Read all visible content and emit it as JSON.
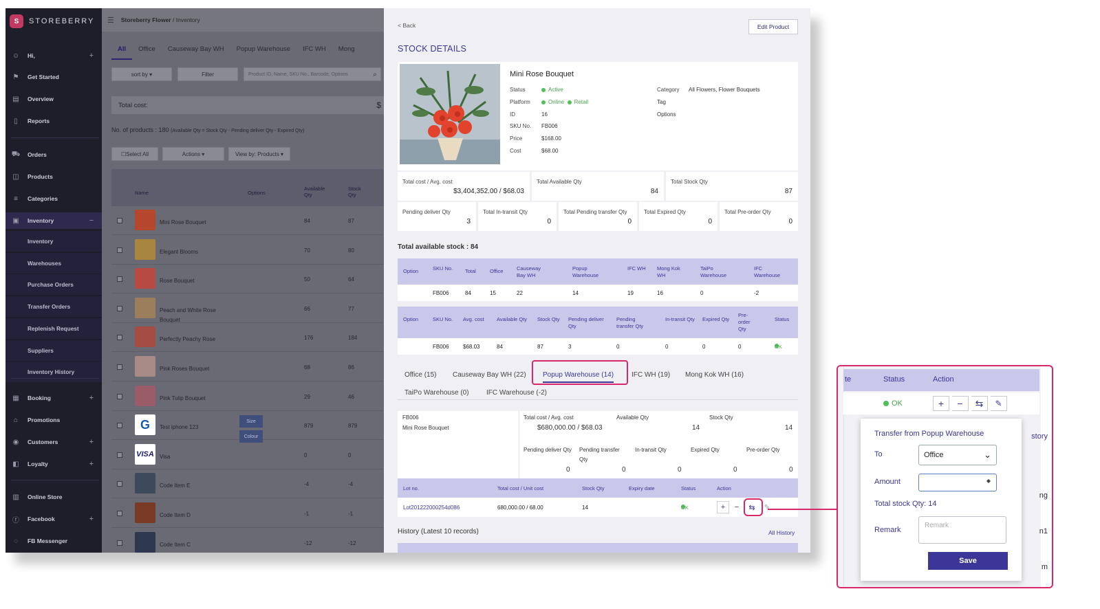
{
  "brand": "STOREBERRY",
  "sidebar": {
    "items": [
      {
        "label": "Hi,",
        "icon": "user-icon",
        "plus": true
      },
      {
        "label": "Get Started",
        "icon": "flag-icon"
      },
      {
        "label": "Overview",
        "icon": "chart-icon"
      },
      {
        "label": "Reports",
        "icon": "document-icon"
      },
      {
        "label": "Orders",
        "icon": "cart-icon"
      },
      {
        "label": "Products",
        "icon": "bag-icon"
      },
      {
        "label": "Categories",
        "icon": "list-icon"
      },
      {
        "label": "Inventory",
        "icon": "boxes-icon",
        "minus": true
      },
      {
        "label": "Booking",
        "icon": "calendar-icon",
        "plus": true
      },
      {
        "label": "Promotions",
        "icon": "home-icon"
      },
      {
        "label": "Customers",
        "icon": "customer-icon",
        "plus": true
      },
      {
        "label": "Loyalty",
        "icon": "loyalty-icon",
        "plus": true
      },
      {
        "label": "Online Store",
        "icon": "store-icon"
      },
      {
        "label": "Facebook",
        "icon": "facebook-icon",
        "plus": true
      },
      {
        "label": "FB Messenger",
        "icon": "messenger-icon"
      }
    ],
    "inventory_sub": [
      "Inventory",
      "Warehouses",
      "Purchase Orders",
      "Transfer Orders",
      "Replenish Request",
      "Suppliers",
      "Inventory History"
    ]
  },
  "list": {
    "breadcrumb": "Storeberry Flower",
    "breadcrumb_sep": "/",
    "breadcrumb_page": "Inventory",
    "tabs": [
      "All",
      "Office",
      "Causeway Bay WH",
      "Popup Warehouse",
      "IFC WH",
      "Mong"
    ],
    "sort_label": "sort by ▾",
    "filter_label": "Filter",
    "search_placeholder": "Product ID, Name, SKU No., Barcode, Options",
    "total_cost_label": "Total cost:",
    "total_cost_value": "$",
    "num_products": "No. of products : 180",
    "num_products_note": "(Available Qty = Stock Qty - Pending deliver Qty - Expired Qty)",
    "select_all": "☐Select All",
    "actions": "Actions ▾",
    "view_by": "View by: Products ▾",
    "columns": {
      "name": "Name",
      "options": "Options",
      "available": "Available Qty",
      "stock": "Stock Qty"
    },
    "rows": [
      {
        "name": "Mini Rose Bouquet",
        "available": "84",
        "stock": "87",
        "color": "#b5472e"
      },
      {
        "name": "Elegant Blooms",
        "available": "70",
        "stock": "80",
        "color": "#a8863f"
      },
      {
        "name": "Rose Bouquet",
        "available": "50",
        "stock": "64",
        "color": "#b84a44"
      },
      {
        "name": "Peach and White Rose Bouquet",
        "available": "66",
        "stock": "77",
        "color": "#9b7e5c"
      },
      {
        "name": "Perfectly Peachy Rose",
        "available": "176",
        "stock": "184",
        "color": "#a54d44"
      },
      {
        "name": "Pink Roses Bouquet",
        "available": "68",
        "stock": "86",
        "color": "#a88a86"
      },
      {
        "name": "Pink Tulip Bouquet",
        "available": "29",
        "stock": "46",
        "color": "#9a5c67"
      },
      {
        "name": "Test iphone 123",
        "available": "879",
        "stock": "879",
        "color": "#d8d8de"
      },
      {
        "name": "Visa",
        "available": "0",
        "stock": "0",
        "color": "#e2e2ea"
      },
      {
        "name": "Code Item E",
        "available": "-4",
        "stock": "-4",
        "color": "#3c4a5c"
      },
      {
        "name": "Code Item D",
        "available": "-1",
        "stock": "-1",
        "color": "#7a3b26"
      },
      {
        "name": "Code Item C",
        "available": "-12",
        "stock": "-12",
        "color": "#2e3850"
      }
    ],
    "option_chips": [
      "Size",
      "Colour"
    ],
    "visa_logo": "VISA"
  },
  "detail": {
    "back": "< Back",
    "edit": "Edit Product",
    "title": "STOCK DETAILS",
    "product": {
      "name": "Mini Rose Bouquet",
      "status_label": "Status",
      "status": "Active",
      "platform_label": "Platform",
      "platform1": "Online",
      "platform2": "Retail",
      "id_label": "ID",
      "id": "16",
      "sku_label": "SKU No.",
      "sku": "FB006",
      "price_label": "Price",
      "price": "$168.00",
      "cost_label": "Cost",
      "cost": "$68.00",
      "category_label": "Category",
      "category": "All Flowers, Flower Bouquets",
      "tag_label": "Tag",
      "options_label": "Options"
    },
    "summary1": [
      {
        "label": "Total cost / Avg. cost",
        "value": "$3,404,352.00 / $68.03"
      },
      {
        "label": "Total Available Qty",
        "value": "84"
      },
      {
        "label": "Total Stock Qty",
        "value": "87"
      }
    ],
    "summary2": [
      {
        "label": "Pending deliver Qty",
        "value": "3"
      },
      {
        "label": "Total In-transit Qty",
        "value": "0"
      },
      {
        "label": "Total Pending transfer Qty",
        "value": "0"
      },
      {
        "label": "Total Expired Qty",
        "value": "0"
      },
      {
        "label": "Total Pre-order Qty",
        "value": "0"
      }
    ],
    "total_available": "Total available stock : 84",
    "t1_head": [
      "Option",
      "SKU No.",
      "Total",
      "Office",
      "Causeway Bay WH",
      "Popup Warehouse",
      "IFC WH",
      "Mong Kok WH",
      "TaiPo Warehouse",
      "IFC Warehouse"
    ],
    "t1_row": [
      "",
      "FB006",
      "84",
      "15",
      "22",
      "14",
      "19",
      "16",
      "0",
      "-2"
    ],
    "t2_head": [
      "Option",
      "SKU No.",
      "Avg. cost",
      "Available Qty",
      "Stock Qty",
      "Pending deliver Qty",
      "Pending transfer Qty",
      "In-transit Qty",
      "Expired Qty",
      "Pre-order Qty",
      "Status"
    ],
    "t2_row": [
      "",
      "FB006",
      "$68.03",
      "84",
      "87",
      "3",
      "0",
      "0",
      "0",
      "0",
      "OK"
    ],
    "wh_tabs": [
      "Office (15)",
      "Causeway Bay WH (22)",
      "Popup Warehouse (14)",
      "IFC WH (19)",
      "Mong Kok WH (16)",
      "TaiPo Warehouse (0)",
      "IFC Warehouse (-2)"
    ],
    "wh": {
      "sku": "FB006",
      "name": "Mini Rose Bouquet",
      "tc_label": "Total cost / Avg. cost",
      "tc": "$680,000.00 / $68.03",
      "av_label": "Available Qty",
      "av": "14",
      "st_label": "Stock Qty",
      "st": "14",
      "pd_label": "Pending deliver Qty",
      "pd": "0",
      "pt_label": "Pending transfer Qty",
      "pt": "0",
      "it_label": "In-transit Qty",
      "it": "0",
      "ex_label": "Expired Qty",
      "ex": "0",
      "po_label": "Pre-order Qty",
      "po": "0"
    },
    "lot_head": [
      "Lot no.",
      "Total cost / Unit cost",
      "Stock Qty",
      "Expiry date",
      "Status",
      "Action"
    ],
    "lot_row": {
      "lot": "Lot201222000254d086",
      "cost": "680,000.00 / 68.00",
      "qty": "14",
      "expiry": "",
      "status": "OK"
    },
    "history": "History (Latest 10 records)",
    "all_history": "All History"
  },
  "popup": {
    "head_status": "Status",
    "head_action": "Action",
    "head_left": "te",
    "status": "OK",
    "side_texts": [
      "story",
      "ng",
      "n1",
      "m"
    ],
    "title": "Transfer from Popup Warehouse",
    "to_label": "To",
    "to_value": "Office",
    "amount_label": "Amount",
    "total_stock": "Total stock Qty: 14",
    "remark_label": "Remark",
    "remark_placeholder": "Remark",
    "save": "Save"
  }
}
